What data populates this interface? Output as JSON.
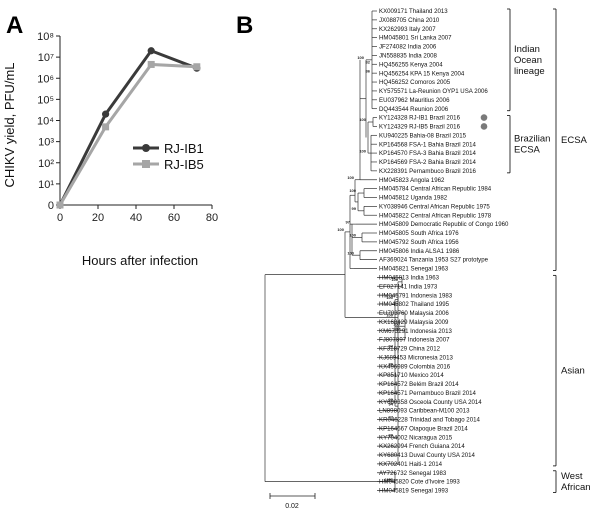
{
  "panel_a_letter": "A",
  "panel_b_letter": "B",
  "chart_data": [
    {
      "type": "line",
      "panel": "A",
      "xlabel": "Hours after infection",
      "ylabel": "CHIKV yield, PFU/mL",
      "x": [
        0,
        24,
        48,
        72
      ],
      "xlim": [
        0,
        80
      ],
      "xticks": [
        0,
        20,
        40,
        60,
        80
      ],
      "ylim": [
        1,
        100000000
      ],
      "yscale": "log",
      "ytick_labels": [
        "0",
        "10¹",
        "10²",
        "10³",
        "10⁴",
        "10⁵",
        "10⁶",
        "10⁷",
        "10⁸"
      ],
      "legend_position": "right",
      "series": [
        {
          "name": "RJ-IB1",
          "color": "#3a3a3a",
          "marker": "circle",
          "values": [
            1,
            20000,
            20000000,
            3000000
          ]
        },
        {
          "name": "RJ-IB5",
          "color": "#a6a6a6",
          "marker": "square",
          "values": [
            1,
            5000,
            4500000,
            3500000
          ]
        }
      ]
    },
    {
      "type": "tree",
      "panel": "B",
      "scale_bar_label": "0.02",
      "clades": [
        {
          "name": "Indian Ocean lineage",
          "lines": [
            "Indian",
            "Ocean",
            "lineage"
          ]
        },
        {
          "name": "Brazilian ECSA",
          "lines": [
            "Brazilian",
            "ECSA"
          ]
        },
        {
          "name": "ECSA",
          "lines": [
            "ECSA"
          ]
        },
        {
          "name": "Asian",
          "lines": [
            "Asian"
          ]
        },
        {
          "name": "West African",
          "lines": [
            "West",
            "African"
          ]
        }
      ],
      "bootstrap_labels": [
        "100",
        "100",
        "100",
        "100",
        "100",
        "100",
        "99",
        "97",
        "100",
        "100",
        "82",
        "86",
        "100",
        "100",
        "100",
        "94",
        "99",
        "94",
        "80",
        "99",
        "97",
        "99",
        "100",
        "100",
        "95"
      ],
      "leaves": [
        "KX009171 Thailand 2013",
        "JX088705 China 2010",
        "KX262993 Italy 2007",
        "HM045801 Sri Lanka 2007",
        "JF274082 India 2006",
        "JN558835 India 2008",
        "HQ456255 Kenya 2004",
        "HQ456254 KPA 15 Kenya 2004",
        "HQ456252 Comoros 2005",
        "KY575571 La-Reunion OYP1 USA 2006",
        "EU037962 Mauritius 2006",
        "DQ443544 Reunion 2006",
        "KY124328 RJ-IB1 Brazil 2016",
        "KY124329 RJ-IB5 Brazil 2016",
        "KU940225 Bahia-08 Brazil 2015",
        "KP164568 FSA-1 Bahia Brazil 2014",
        "KP164570 FSA-3 Bahia Brazil 2014",
        "KP164569 FSA-2 Bahia Brazil 2014",
        "KX228391 Pernambuco Brazil 2016",
        "HM045823 Angola 1962",
        "HM045784 Central African Republic 1984",
        "HM045812 Uganda 1982",
        "KY038946 Central African Republic 1975",
        "HM045822 Central African Republic 1978",
        "HM045809 Democratic Republic of Congo 1960",
        "HM045805 South Africa 1976",
        "HM045792 South Africa 1956",
        "HM045806 India ALSA1 1986",
        "AF369024 Tanzania 1953 S27 prototype",
        "HM045821 Senegal 1963",
        "HM045813 India 1963",
        "EF027141 India 1973",
        "HM045791 Indonesia 1983",
        "HM045802 Thailand 1995",
        "EU703760 Malaysia 2006",
        "KX168429 Malaysia 2009",
        "KM673291 Indonesia 2013",
        "FJ807897 Indonesia 2007",
        "KF318729 China 2012",
        "KJ689453 Micronesia 2013",
        "KX496989 Colombia 2016",
        "KP851710 Mexico 2014",
        "KP164572 Belém Brazil 2014",
        "KP164571 Pernambuco Brazil 2014",
        "KY680358 Osceola County USA 2014",
        "LN898093 Caribbean-M100 2013",
        "KR046228 Trinidad and Tobago 2014",
        "KP164567 Oiapoque Brazil 2014",
        "KY704002 Nicaragua 2015",
        "KX262994 French Guiana 2014",
        "KY680413 Duval County USA 2014",
        "KX702401 Haiti-1 2014",
        "AY726732 Senegal 1983",
        "HM045820 Cote d'Ivoire 1993",
        "HM045819 Senegal 1993"
      ]
    }
  ]
}
